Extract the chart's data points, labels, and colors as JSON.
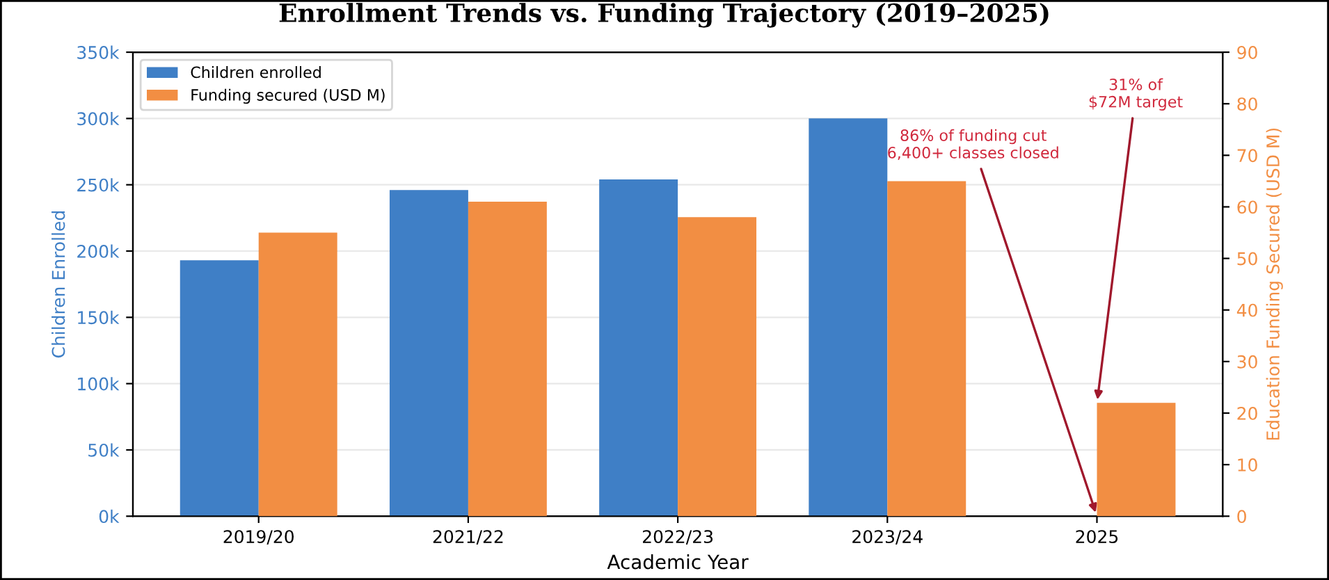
{
  "chart_data": {
    "type": "bar",
    "title": "Enrollment Trends vs. Funding Trajectory (2019–2025)",
    "xlabel": "Academic Year",
    "ylabel": "Children Enrolled",
    "y2label": "Education Funding Secured (USD M)",
    "categories": [
      "2019/20",
      "2021/22",
      "2022/23",
      "2023/24",
      "2025"
    ],
    "series": [
      {
        "name": "Children enrolled",
        "color": "#3f7fc6",
        "values": [
          193000,
          246000,
          254000,
          300000,
          0
        ]
      },
      {
        "name": "Funding secured (USD M)",
        "color": "#f28e43",
        "axis": "y2",
        "values": [
          55,
          61,
          58,
          65,
          22
        ]
      }
    ],
    "ylim": [
      0,
      350000
    ],
    "yticks": [
      {
        "value": 0,
        "label": "0k"
      },
      {
        "value": 50000,
        "label": "50k"
      },
      {
        "value": 100000,
        "label": "100k"
      },
      {
        "value": 150000,
        "label": "150k"
      },
      {
        "value": 200000,
        "label": "200k"
      },
      {
        "value": 250000,
        "label": "250k"
      },
      {
        "value": 300000,
        "label": "300k"
      },
      {
        "value": 350000,
        "label": "350k"
      }
    ],
    "y2lim": [
      0,
      90
    ],
    "y2ticks": [
      0,
      10,
      20,
      30,
      40,
      50,
      60,
      70,
      80,
      90
    ],
    "annotations": [
      {
        "text": "31% of\n$72M target",
        "x": "2025",
        "y": 85000
      },
      {
        "text": "86% of funding cut\n6,400+ classes closed",
        "x": "2025",
        "y": 0
      }
    ],
    "grid": "y",
    "legend": "top left"
  }
}
